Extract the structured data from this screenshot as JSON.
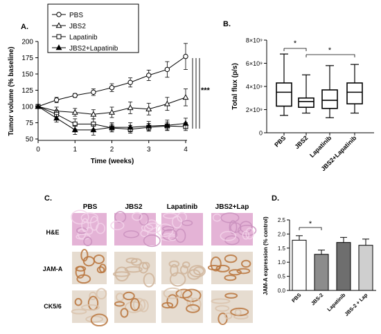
{
  "panel_labels": {
    "a": "A.",
    "b": "B.",
    "c": "C.",
    "d": "D."
  },
  "significance": {
    "a": "***",
    "b1": "*",
    "b2": "*",
    "d": "*"
  },
  "colors": {
    "pbs_bar": "#ffffff",
    "jbs2_bar": "#8c8c8c",
    "lap_bar": "#6e6e6e",
    "combo_bar": "#cfcfcf",
    "he_stain": "#e4b3d6",
    "ihc_bg": "#e6dcd0",
    "ihc_brown": "#b8743c"
  },
  "panel_c": {
    "columns": [
      "PBS",
      "JBS2",
      "Lapatinib",
      "JBS2+Lap"
    ],
    "rows": [
      "H&E",
      "JAM-A",
      "CK5/6"
    ]
  },
  "chart_data": [
    {
      "type": "line",
      "panel": "A",
      "xlabel": "Time (weeks)",
      "ylabel": "Tumor volume (% baseline)",
      "xlim": [
        0,
        4
      ],
      "ylim": [
        50,
        200
      ],
      "xticks": [
        "0",
        "1",
        "2",
        "3",
        "4"
      ],
      "yticks": [
        "50",
        "75",
        "100",
        "125",
        "150",
        "175",
        "200"
      ],
      "legend_position": "top-left",
      "x": [
        0,
        0.5,
        1,
        1.5,
        2,
        2.5,
        3,
        3.5,
        4
      ],
      "series": [
        {
          "name": "PBS",
          "marker": "open-circle",
          "values": [
            100,
            110,
            117,
            122,
            129,
            137,
            148,
            157,
            177
          ],
          "errors": [
            0,
            4,
            3,
            5,
            6,
            7,
            8,
            12,
            20
          ]
        },
        {
          "name": "JBS2",
          "marker": "open-triangle",
          "values": [
            100,
            93,
            91,
            88,
            91,
            98,
            96,
            104,
            114
          ],
          "errors": [
            0,
            6,
            6,
            7,
            8,
            9,
            9,
            10,
            13
          ]
        },
        {
          "name": "Lapatinib",
          "marker": "open-square",
          "values": [
            100,
            88,
            73,
            73,
            67,
            65,
            68,
            70,
            69
          ],
          "errors": [
            0,
            6,
            8,
            8,
            6,
            6,
            6,
            6,
            6
          ]
        },
        {
          "name": "JBS2+Lapatinib",
          "marker": "filled-triangle",
          "values": [
            100,
            82,
            64,
            64,
            68,
            68,
            70,
            71,
            74
          ],
          "errors": [
            0,
            6,
            7,
            8,
            7,
            7,
            7,
            8,
            8
          ]
        }
      ]
    },
    {
      "type": "boxplot",
      "panel": "B",
      "ylabel": "Total flux  (p/s)",
      "yticks": [
        "0",
        "2×10⁹",
        "4×10⁹",
        "6×10⁹",
        "8×10⁹"
      ],
      "ylim": [
        0,
        8000000000.0
      ],
      "categories": [
        "PBS",
        "JBS2",
        "Lapatinib",
        "JBS2+Lapatinib"
      ],
      "boxes": [
        {
          "min": 1500000000.0,
          "q1": 2300000000.0,
          "median": 3500000000.0,
          "q3": 4300000000.0,
          "max": 6800000000.0
        },
        {
          "min": 1700000000.0,
          "q1": 2200000000.0,
          "median": 2700000000.0,
          "q3": 3000000000.0,
          "max": 5000000000.0
        },
        {
          "min": 1300000000.0,
          "q1": 2100000000.0,
          "median": 2800000000.0,
          "q3": 3700000000.0,
          "max": 5800000000.0
        },
        {
          "min": 1700000000.0,
          "q1": 2500000000.0,
          "median": 3500000000.0,
          "q3": 4300000000.0,
          "max": 5900000000.0
        }
      ]
    },
    {
      "type": "bar",
      "panel": "D",
      "ylabel": "JAM-A expression  (% control)",
      "ylim": [
        0,
        2.5
      ],
      "yticks": [
        "0.0",
        "0.5",
        "1.0",
        "1.5",
        "2.0",
        "2.5"
      ],
      "categories": [
        "PBS",
        "JBS-2",
        "Lapatinib",
        "JBS-2 + Lap"
      ],
      "values": [
        1.78,
        1.28,
        1.7,
        1.6
      ],
      "errors": [
        0.16,
        0.15,
        0.18,
        0.22
      ]
    }
  ]
}
